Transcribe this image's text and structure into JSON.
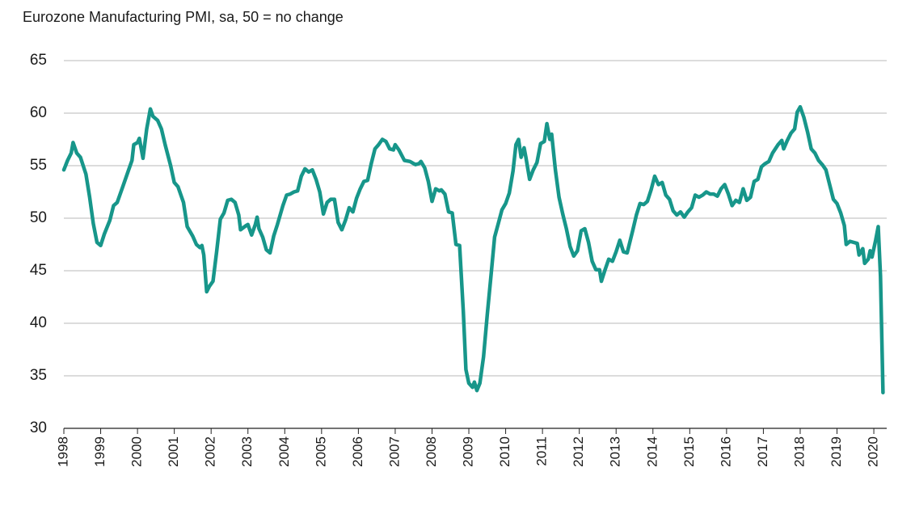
{
  "chart_data": {
    "type": "line",
    "title": "Eurozone Manufacturing PMI, sa, 50 = no change",
    "color": "#17968a",
    "grid": true,
    "xlim": [
      1998,
      2020.35
    ],
    "ylim": [
      30,
      65
    ],
    "yticks": [
      30,
      35,
      40,
      45,
      50,
      55,
      60,
      65
    ],
    "xticks": [
      1998,
      1999,
      2000,
      2001,
      2002,
      2003,
      2004,
      2005,
      2006,
      2007,
      2008,
      2009,
      2010,
      2011,
      2012,
      2013,
      2014,
      2015,
      2016,
      2017,
      2018,
      2019,
      2020
    ],
    "x": [
      1998.0,
      1998.1,
      1998.2,
      1998.25,
      1998.35,
      1998.45,
      1998.6,
      1998.7,
      1998.8,
      1998.9,
      1999.0,
      1999.1,
      1999.25,
      1999.35,
      1999.45,
      1999.6,
      1999.75,
      1999.85,
      1999.9,
      2000.0,
      2000.05,
      2000.15,
      2000.25,
      2000.35,
      2000.42,
      2000.55,
      2000.65,
      2000.75,
      2000.9,
      2001.0,
      2001.1,
      2001.25,
      2001.35,
      2001.5,
      2001.6,
      2001.7,
      2001.75,
      2001.8,
      2001.88,
      2001.95,
      2002.05,
      2002.15,
      2002.25,
      2002.35,
      2002.45,
      2002.55,
      2002.65,
      2002.75,
      2002.8,
      2002.95,
      2003.0,
      2003.1,
      2003.2,
      2003.25,
      2003.3,
      2003.4,
      2003.5,
      2003.6,
      2003.7,
      2003.8,
      2003.95,
      2004.05,
      2004.15,
      2004.25,
      2004.35,
      2004.45,
      2004.55,
      2004.65,
      2004.75,
      2004.85,
      2004.95,
      2005.05,
      2005.15,
      2005.25,
      2005.35,
      2005.45,
      2005.55,
      2005.65,
      2005.75,
      2005.85,
      2005.95,
      2006.05,
      2006.15,
      2006.25,
      2006.35,
      2006.45,
      2006.55,
      2006.65,
      2006.75,
      2006.85,
      2006.95,
      2007.0,
      2007.1,
      2007.25,
      2007.4,
      2007.55,
      2007.65,
      2007.7,
      2007.8,
      2007.9,
      2008.0,
      2008.1,
      2008.2,
      2008.25,
      2008.35,
      2008.45,
      2008.55,
      2008.6,
      2008.65,
      2008.75,
      2008.85,
      2008.92,
      2009.0,
      2009.1,
      2009.15,
      2009.22,
      2009.3,
      2009.4,
      2009.5,
      2009.6,
      2009.7,
      2009.8,
      2009.9,
      2010.0,
      2010.1,
      2010.2,
      2010.28,
      2010.35,
      2010.42,
      2010.5,
      2010.55,
      2010.65,
      2010.75,
      2010.85,
      2010.95,
      2011.05,
      2011.12,
      2011.2,
      2011.25,
      2011.35,
      2011.45,
      2011.55,
      2011.65,
      2011.75,
      2011.85,
      2011.95,
      2012.05,
      2012.15,
      2012.25,
      2012.35,
      2012.45,
      2012.55,
      2012.6,
      2012.7,
      2012.8,
      2012.9,
      2013.0,
      2013.1,
      2013.2,
      2013.3,
      2013.45,
      2013.55,
      2013.65,
      2013.75,
      2013.85,
      2013.95,
      2014.05,
      2014.15,
      2014.25,
      2014.35,
      2014.45,
      2014.55,
      2014.65,
      2014.75,
      2014.85,
      2014.95,
      2015.05,
      2015.15,
      2015.25,
      2015.35,
      2015.45,
      2015.55,
      2015.65,
      2015.75,
      2015.85,
      2015.95,
      2016.05,
      2016.15,
      2016.25,
      2016.35,
      2016.45,
      2016.55,
      2016.65,
      2016.75,
      2016.85,
      2016.95,
      2017.05,
      2017.15,
      2017.25,
      2017.4,
      2017.5,
      2017.55,
      2017.65,
      2017.75,
      2017.85,
      2017.92,
      2018.0,
      2018.1,
      2018.2,
      2018.3,
      2018.4,
      2018.5,
      2018.6,
      2018.7,
      2018.8,
      2018.9,
      2019.0,
      2019.1,
      2019.2,
      2019.25,
      2019.35,
      2019.45,
      2019.55,
      2019.6,
      2019.7,
      2019.75,
      2019.85,
      2019.9,
      2019.95,
      2020.05,
      2020.12,
      2020.18,
      2020.25
    ],
    "values": [
      54.6,
      55.5,
      56.2,
      57.2,
      56.2,
      55.8,
      54.2,
      52,
      49.5,
      47.7,
      47.4,
      48.5,
      49.8,
      51.2,
      51.5,
      53,
      54.5,
      55.5,
      57,
      57.2,
      57.6,
      55.7,
      58.5,
      60.4,
      59.7,
      59.3,
      58.5,
      57,
      55,
      53.4,
      53,
      51.5,
      49.2,
      48.3,
      47.5,
      47.2,
      47.4,
      46.5,
      43,
      43.5,
      44,
      46.8,
      49.9,
      50.5,
      51.7,
      51.8,
      51.5,
      50.3,
      48.9,
      49.3,
      49.4,
      48.4,
      49.4,
      50.1,
      49,
      48.2,
      47,
      46.7,
      48.3,
      49.4,
      51.2,
      52.2,
      52.3,
      52.5,
      52.6,
      54,
      54.7,
      54.4,
      54.6,
      53.7,
      52.5,
      50.4,
      51.5,
      51.8,
      51.8,
      49.6,
      48.9,
      49.8,
      51,
      50.6,
      51.9,
      52.8,
      53.5,
      53.6,
      55.2,
      56.6,
      57,
      57.5,
      57.3,
      56.6,
      56.5,
      57,
      56.5,
      55.5,
      55.4,
      55.1,
      55.2,
      55.4,
      54.8,
      53.5,
      51.6,
      52.8,
      52.6,
      52.7,
      52.3,
      50.6,
      50.5,
      49,
      47.5,
      47.4,
      41.1,
      35.6,
      34.3,
      33.9,
      34.4,
      33.6,
      34.3,
      36.8,
      40.8,
      44.5,
      48.2,
      49.5,
      50.8,
      51.4,
      52.4,
      54.5,
      57,
      57.5,
      55.8,
      56.7,
      55.8,
      53.7,
      54.6,
      55.3,
      57.1,
      57.3,
      59,
      57.5,
      58,
      54.6,
      52,
      50.4,
      49,
      47.3,
      46.4,
      46.9,
      48.8,
      49,
      47.7,
      45.9,
      45.1,
      45.1,
      44,
      45.1,
      46.1,
      45.9,
      46.8,
      47.9,
      46.8,
      46.7,
      48.8,
      50.3,
      51.4,
      51.3,
      51.6,
      52.7,
      54,
      53.2,
      53.4,
      52.2,
      51.8,
      50.7,
      50.3,
      50.6,
      50.1,
      50.6,
      51,
      52.2,
      52,
      52.2,
      52.5,
      52.3,
      52.3,
      52.1,
      52.8,
      53.2,
      52.3,
      51.2,
      51.7,
      51.5,
      52.8,
      51.7,
      52,
      53.5,
      53.7,
      54.9,
      55.2,
      55.4,
      56.2,
      57,
      57.4,
      56.6,
      57.4,
      58.1,
      58.5,
      60.1,
      60.6,
      59.6,
      58.2,
      56.6,
      56.2,
      55.5,
      55.1,
      54.6,
      53.2,
      51.8,
      51.4,
      50.5,
      49.3,
      47.5,
      47.8,
      47.7,
      47.6,
      46.5,
      47.1,
      45.7,
      46.1,
      46.9,
      46.3,
      47.9,
      49.2,
      44.5,
      33.4
    ]
  }
}
